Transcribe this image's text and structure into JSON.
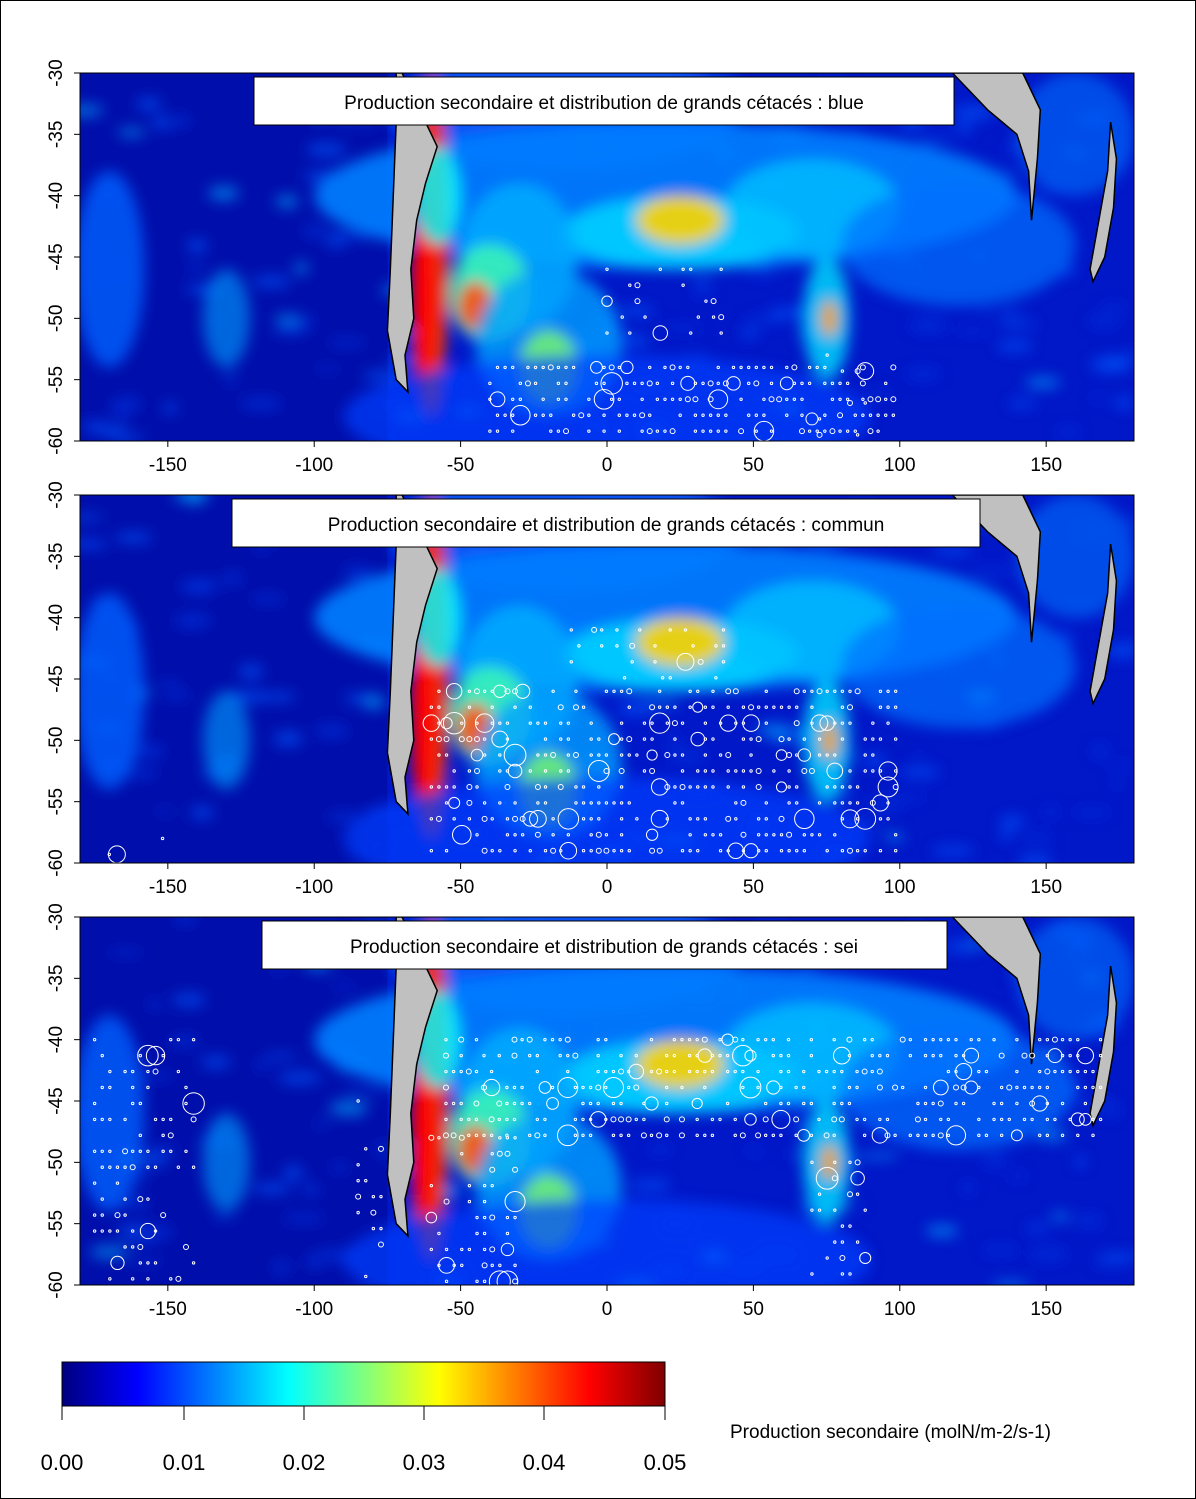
{
  "panels": [
    {
      "title": "Production secondaire et distribution de grands cétacés : blue",
      "species": "blue",
      "x_ticks": [
        "-150",
        "-100",
        "-50",
        "0",
        "50",
        "100",
        "150"
      ],
      "y_ticks": [
        "-30",
        "-35",
        "-40",
        "-45",
        "-50",
        "-55",
        "-60"
      ]
    },
    {
      "title": "Production secondaire et distribution de grands cétacés : commun",
      "species": "commun",
      "x_ticks": [
        "-150",
        "-100",
        "-50",
        "0",
        "50",
        "100",
        "150"
      ],
      "y_ticks": [
        "-30",
        "-35",
        "-40",
        "-45",
        "-50",
        "-55",
        "-60"
      ]
    },
    {
      "title": "Production secondaire et distribution de grands cétacés : sei",
      "species": "sei",
      "x_ticks": [
        "-150",
        "-100",
        "-50",
        "0",
        "50",
        "100",
        "150"
      ],
      "y_ticks": [
        "-30",
        "-35",
        "-40",
        "-45",
        "-50",
        "-55",
        "-60"
      ]
    }
  ],
  "colorbar": {
    "tick_labels": [
      "0.00",
      "0.01",
      "0.02",
      "0.03",
      "0.04",
      "0.05"
    ],
    "caption": "Production secondaire (molN/m-2/s-1)",
    "colors": [
      "#00007f",
      "#0000ff",
      "#007fff",
      "#00ffff",
      "#7fff7f",
      "#ffff00",
      "#ff7f00",
      "#ff0000",
      "#7f0000"
    ]
  },
  "map_colors": {
    "land": "#c0c0c0",
    "background_ocean": "#0018c8",
    "whale_markers": "#ffffff"
  },
  "chart_data": {
    "type": "heatmap",
    "x_range": [
      -180,
      180
    ],
    "y_range": [
      -60,
      -30
    ],
    "value_range": [
      0.0,
      0.05
    ]
  }
}
